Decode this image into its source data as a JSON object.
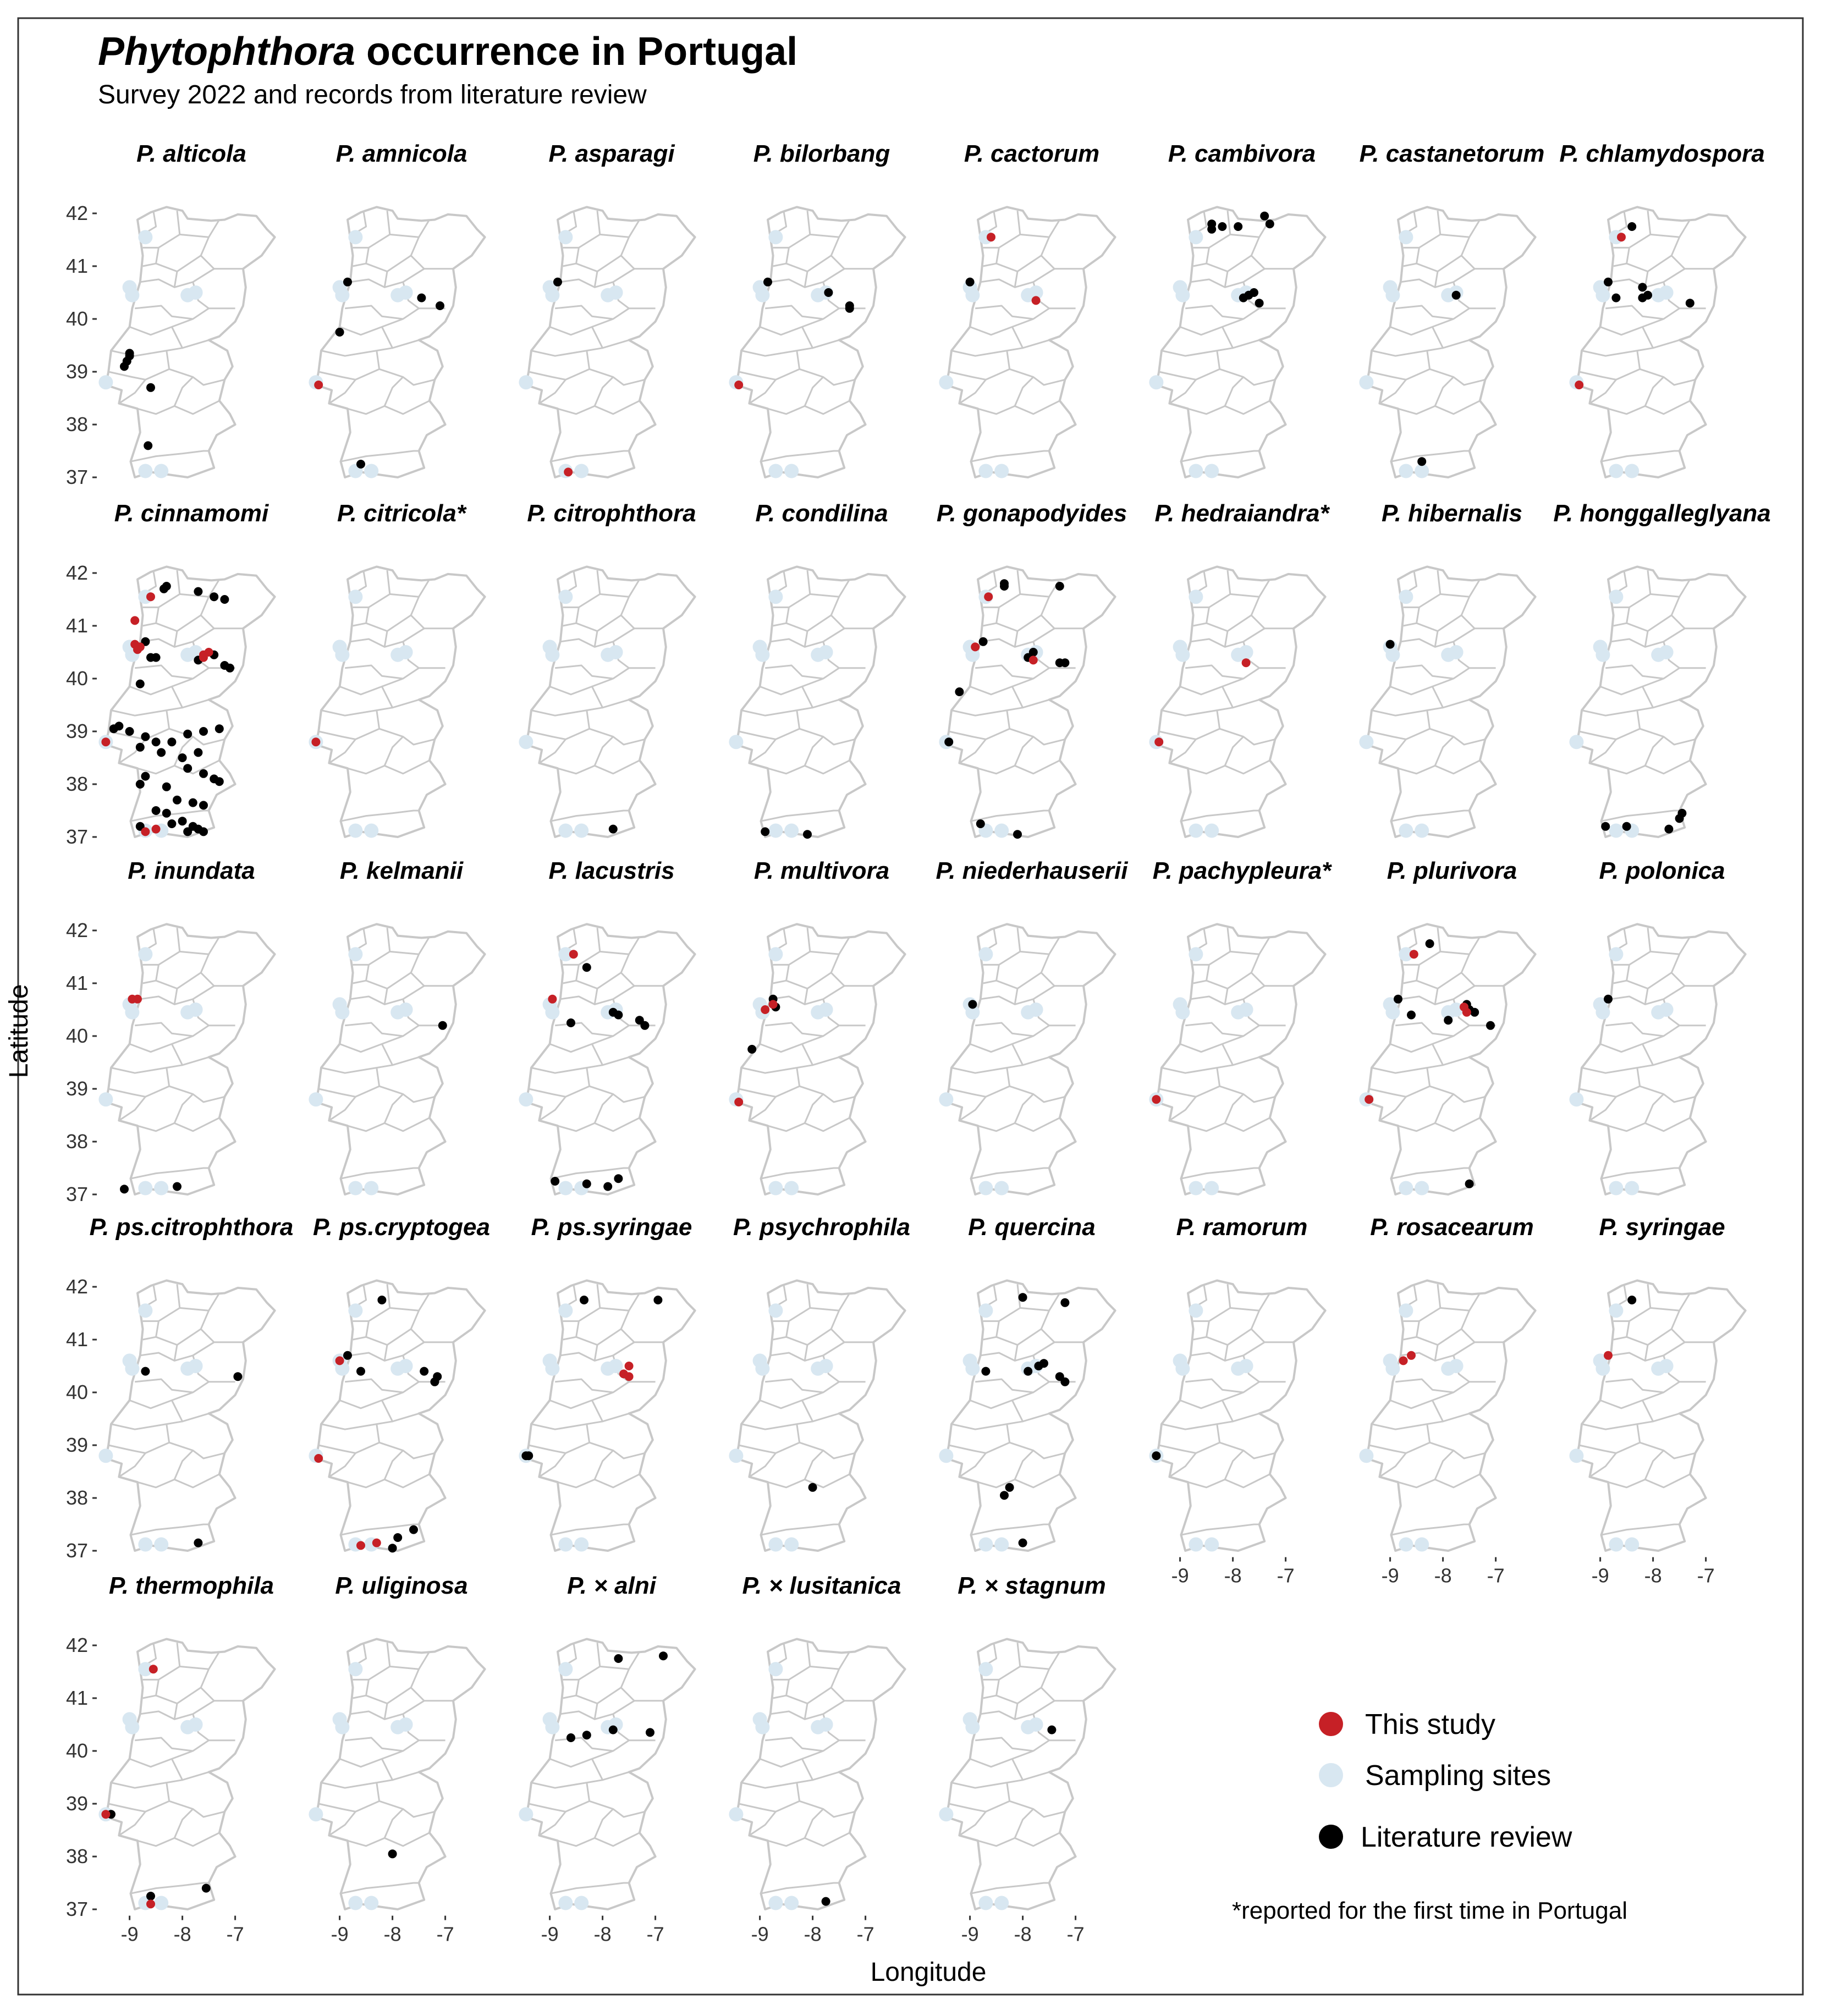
{
  "title": {
    "italic": "Phytophthora",
    "rest": " occurrence in Portugal"
  },
  "subtitle": "Survey 2022 and records from literature review",
  "colors": {
    "this_study": "#c62026",
    "sampling": "#d8e7f1",
    "literature": "#000000",
    "map": "#c8c8c8",
    "frame": "#333333"
  },
  "legend": {
    "items": [
      {
        "key": "this_study",
        "label": "This study"
      },
      {
        "key": "sampling",
        "label": "Sampling sites"
      },
      {
        "key": "literature",
        "label": "Literature review"
      }
    ]
  },
  "footnote": "*reported for the first time in Portugal",
  "chart_data": {
    "type": "scatter",
    "title": "Phytophthora occurrence in Portugal",
    "subtitle": "Survey 2022 and records from literature review",
    "xlabel": "Longitude",
    "ylabel": "Latitude",
    "xlim": [
      -9.6,
      -6.2
    ],
    "ylim": [
      36.9,
      42.25
    ],
    "x_ticks": [
      -9,
      -8,
      -7
    ],
    "x_tick_labels": [
      "-9",
      "-8",
      "-7"
    ],
    "y_ticks": [
      42,
      41,
      40,
      39,
      38,
      37
    ],
    "y_tick_labels": [
      "42",
      "41",
      "40",
      "39",
      "38",
      "37"
    ],
    "sampling_sites": [
      [
        -8.7,
        41.55
      ],
      [
        -9.0,
        40.6
      ],
      [
        -8.95,
        40.45
      ],
      [
        -7.9,
        40.45
      ],
      [
        -7.75,
        40.5
      ],
      [
        -9.45,
        38.8
      ],
      [
        -8.7,
        37.12
      ],
      [
        -8.4,
        37.12
      ]
    ],
    "panels": [
      {
        "name": "P. alticola",
        "study": [],
        "literature": [
          [
            -9.1,
            39.1
          ],
          [
            -9.05,
            39.2
          ],
          [
            -9.0,
            39.3
          ],
          [
            -9.0,
            39.35
          ],
          [
            -8.6,
            38.7
          ],
          [
            -8.65,
            37.6
          ]
        ]
      },
      {
        "name": "P. amnicola",
        "study": [
          [
            -9.4,
            38.75
          ]
        ],
        "literature": [
          [
            -8.85,
            40.7
          ],
          [
            -9.0,
            39.75
          ],
          [
            -7.45,
            40.4
          ],
          [
            -7.1,
            40.25
          ],
          [
            -8.6,
            37.25
          ]
        ]
      },
      {
        "name": "P. asparagi",
        "study": [
          [
            -8.65,
            37.1
          ]
        ],
        "literature": [
          [
            -8.85,
            40.7
          ]
        ]
      },
      {
        "name": "P. bilorbang",
        "study": [
          [
            -9.4,
            38.75
          ]
        ],
        "literature": [
          [
            -8.85,
            40.7
          ],
          [
            -7.7,
            40.5
          ],
          [
            -7.3,
            40.25
          ],
          [
            -7.3,
            40.2
          ]
        ]
      },
      {
        "name": "P. cactorum",
        "study": [
          [
            -8.6,
            41.55
          ],
          [
            -7.75,
            40.35
          ]
        ],
        "literature": [
          [
            -9.0,
            40.7
          ]
        ]
      },
      {
        "name": "P. cambivora",
        "study": [],
        "literature": [
          [
            -8.4,
            41.8
          ],
          [
            -8.4,
            41.7
          ],
          [
            -8.2,
            41.75
          ],
          [
            -7.9,
            41.75
          ],
          [
            -7.4,
            41.95
          ],
          [
            -7.3,
            41.8
          ],
          [
            -7.7,
            40.45
          ],
          [
            -7.6,
            40.5
          ],
          [
            -7.8,
            40.4
          ],
          [
            -7.5,
            40.3
          ]
        ]
      },
      {
        "name": "P. castanetorum",
        "study": [],
        "literature": [
          [
            -7.75,
            40.45
          ],
          [
            -8.4,
            37.3
          ]
        ]
      },
      {
        "name": "P. chlamydospora",
        "study": [
          [
            -8.6,
            41.55
          ],
          [
            -9.4,
            38.75
          ]
        ],
        "literature": [
          [
            -8.4,
            41.75
          ],
          [
            -8.85,
            40.7
          ],
          [
            -8.7,
            40.4
          ],
          [
            -8.2,
            40.6
          ],
          [
            -8.2,
            40.4
          ],
          [
            -8.1,
            40.45
          ],
          [
            -7.3,
            40.3
          ]
        ]
      },
      {
        "name": "P. cinnamomi",
        "study": [
          [
            -8.6,
            41.55
          ],
          [
            -8.9,
            41.1
          ],
          [
            -8.9,
            40.65
          ],
          [
            -8.8,
            40.6
          ],
          [
            -8.85,
            40.55
          ],
          [
            -7.6,
            40.45
          ],
          [
            -7.6,
            40.4
          ],
          [
            -7.5,
            40.5
          ],
          [
            -9.45,
            38.8
          ],
          [
            -8.7,
            37.1
          ],
          [
            -8.5,
            37.15
          ]
        ],
        "literature": [
          [
            -8.3,
            41.75
          ],
          [
            -8.35,
            41.7
          ],
          [
            -7.7,
            41.65
          ],
          [
            -7.4,
            41.55
          ],
          [
            -7.2,
            41.5
          ],
          [
            -8.7,
            40.7
          ],
          [
            -8.6,
            40.4
          ],
          [
            -8.5,
            40.4
          ],
          [
            -7.7,
            40.35
          ],
          [
            -7.4,
            40.45
          ],
          [
            -7.2,
            40.25
          ],
          [
            -7.1,
            40.2
          ],
          [
            -8.8,
            39.9
          ],
          [
            -9.2,
            39.1
          ],
          [
            -9.0,
            39.0
          ],
          [
            -8.7,
            38.9
          ],
          [
            -8.5,
            38.8
          ],
          [
            -8.2,
            38.8
          ],
          [
            -7.9,
            38.95
          ],
          [
            -7.6,
            39.0
          ],
          [
            -7.3,
            39.05
          ],
          [
            -9.3,
            39.05
          ],
          [
            -8.8,
            38.7
          ],
          [
            -8.4,
            38.6
          ],
          [
            -8.0,
            38.5
          ],
          [
            -7.7,
            38.6
          ],
          [
            -8.8,
            38.0
          ],
          [
            -8.7,
            38.15
          ],
          [
            -8.3,
            37.95
          ],
          [
            -7.9,
            38.3
          ],
          [
            -7.6,
            38.2
          ],
          [
            -7.4,
            38.1
          ],
          [
            -7.3,
            38.05
          ],
          [
            -8.1,
            37.7
          ],
          [
            -7.8,
            37.65
          ],
          [
            -7.6,
            37.6
          ],
          [
            -8.5,
            37.5
          ],
          [
            -8.3,
            37.45
          ],
          [
            -8.0,
            37.3
          ],
          [
            -7.8,
            37.2
          ],
          [
            -7.7,
            37.15
          ],
          [
            -8.8,
            37.2
          ],
          [
            -7.9,
            37.1
          ],
          [
            -7.6,
            37.1
          ],
          [
            -8.2,
            37.25
          ]
        ]
      },
      {
        "name": "P. citricola*",
        "study": [
          [
            -9.45,
            38.8
          ]
        ],
        "literature": []
      },
      {
        "name": "P. citrophthora",
        "study": [],
        "literature": [
          [
            -7.8,
            37.15
          ]
        ]
      },
      {
        "name": "P. condilina",
        "study": [],
        "literature": [
          [
            -8.9,
            37.1
          ],
          [
            -8.1,
            37.05
          ]
        ]
      },
      {
        "name": "P. gonapodyides",
        "study": [
          [
            -8.65,
            41.55
          ],
          [
            -8.9,
            40.6
          ],
          [
            -7.8,
            40.35
          ]
        ],
        "literature": [
          [
            -8.35,
            41.75
          ],
          [
            -8.35,
            41.8
          ],
          [
            -7.3,
            41.75
          ],
          [
            -8.75,
            40.7
          ],
          [
            -7.8,
            40.5
          ],
          [
            -7.9,
            40.4
          ],
          [
            -7.3,
            40.3
          ],
          [
            -7.2,
            40.3
          ],
          [
            -9.2,
            39.75
          ],
          [
            -9.4,
            38.8
          ],
          [
            -8.8,
            37.25
          ],
          [
            -8.1,
            37.05
          ]
        ]
      },
      {
        "name": "P. hedraiandra*",
        "study": [
          [
            -9.4,
            38.8
          ],
          [
            -7.75,
            40.3
          ]
        ],
        "literature": []
      },
      {
        "name": "P. hibernalis",
        "study": [],
        "literature": [
          [
            -9.0,
            40.65
          ]
        ]
      },
      {
        "name": "P. honggalleglyana",
        "study": [],
        "literature": [
          [
            -8.9,
            37.2
          ],
          [
            -8.5,
            37.2
          ],
          [
            -7.7,
            37.15
          ],
          [
            -7.5,
            37.35
          ],
          [
            -7.45,
            37.45
          ]
        ]
      },
      {
        "name": "P. inundata",
        "study": [
          [
            -8.95,
            40.7
          ],
          [
            -8.85,
            40.7
          ]
        ],
        "literature": [
          [
            -9.1,
            37.1
          ],
          [
            -8.1,
            37.15
          ]
        ]
      },
      {
        "name": "P. kelmanii",
        "study": [],
        "literature": [
          [
            -7.05,
            40.2
          ]
        ]
      },
      {
        "name": "P. lacustris",
        "study": [
          [
            -8.55,
            41.55
          ],
          [
            -8.95,
            40.7
          ]
        ],
        "literature": [
          [
            -8.3,
            41.3
          ],
          [
            -8.6,
            40.25
          ],
          [
            -7.8,
            40.45
          ],
          [
            -7.7,
            40.4
          ],
          [
            -7.3,
            40.3
          ],
          [
            -7.2,
            40.2
          ],
          [
            -8.9,
            37.25
          ],
          [
            -8.3,
            37.2
          ],
          [
            -7.9,
            37.15
          ],
          [
            -7.7,
            37.3
          ]
        ]
      },
      {
        "name": "P. multivora",
        "study": [
          [
            -8.75,
            40.6
          ],
          [
            -8.9,
            40.5
          ],
          [
            -9.4,
            38.75
          ]
        ],
        "literature": [
          [
            -8.75,
            40.7
          ],
          [
            -8.7,
            40.55
          ],
          [
            -9.15,
            39.75
          ]
        ]
      },
      {
        "name": "P. niederhauserii",
        "study": [],
        "literature": [
          [
            -8.95,
            40.6
          ]
        ]
      },
      {
        "name": "P. pachypleura*",
        "study": [
          [
            -9.45,
            38.8
          ]
        ],
        "literature": []
      },
      {
        "name": "P. plurivora",
        "study": [
          [
            -8.55,
            41.55
          ],
          [
            -7.6,
            40.55
          ],
          [
            -7.55,
            40.45
          ],
          [
            -9.4,
            38.8
          ]
        ],
        "literature": [
          [
            -8.25,
            41.75
          ],
          [
            -8.85,
            40.7
          ],
          [
            -8.6,
            40.4
          ],
          [
            -7.9,
            40.3
          ],
          [
            -7.55,
            40.6
          ],
          [
            -7.5,
            40.5
          ],
          [
            -7.4,
            40.45
          ],
          [
            -7.1,
            40.2
          ],
          [
            -7.5,
            37.2
          ]
        ]
      },
      {
        "name": "P. polonica",
        "study": [],
        "literature": [
          [
            -8.85,
            40.7
          ]
        ]
      },
      {
        "name": "P. ps.citrophthora",
        "study": [],
        "literature": [
          [
            -8.7,
            40.4
          ],
          [
            -6.95,
            40.3
          ],
          [
            -7.7,
            37.15
          ]
        ]
      },
      {
        "name": "P. ps.cryptogea",
        "study": [
          [
            -9.0,
            40.6
          ],
          [
            -9.4,
            38.75
          ],
          [
            -8.6,
            37.1
          ],
          [
            -8.3,
            37.15
          ]
        ],
        "literature": [
          [
            -8.2,
            41.75
          ],
          [
            -8.85,
            40.7
          ],
          [
            -8.6,
            40.4
          ],
          [
            -7.4,
            40.4
          ],
          [
            -7.15,
            40.3
          ],
          [
            -7.2,
            40.2
          ],
          [
            -7.9,
            37.25
          ],
          [
            -8.0,
            37.05
          ],
          [
            -7.6,
            37.4
          ]
        ]
      },
      {
        "name": "P. ps.syringae",
        "study": [
          [
            -7.5,
            40.5
          ],
          [
            -7.6,
            40.35
          ],
          [
            -7.5,
            40.3
          ]
        ],
        "literature": [
          [
            -8.35,
            41.75
          ],
          [
            -6.95,
            41.75
          ],
          [
            -9.45,
            38.8
          ],
          [
            -9.4,
            38.8
          ]
        ]
      },
      {
        "name": "P. psychrophila",
        "study": [],
        "literature": [
          [
            -8.0,
            38.2
          ]
        ]
      },
      {
        "name": "P. quercina",
        "study": [],
        "literature": [
          [
            -8.0,
            41.8
          ],
          [
            -7.2,
            41.7
          ],
          [
            -8.7,
            40.4
          ],
          [
            -7.9,
            40.4
          ],
          [
            -7.7,
            40.5
          ],
          [
            -7.6,
            40.55
          ],
          [
            -7.3,
            40.3
          ],
          [
            -7.2,
            40.2
          ],
          [
            -8.25,
            38.2
          ],
          [
            -8.35,
            38.05
          ],
          [
            -8.0,
            37.15
          ]
        ]
      },
      {
        "name": "P. ramorum",
        "study": [],
        "literature": [
          [
            -9.45,
            38.8
          ]
        ]
      },
      {
        "name": "P. rosacearum",
        "study": [
          [
            -8.6,
            40.7
          ],
          [
            -8.75,
            40.6
          ]
        ],
        "literature": []
      },
      {
        "name": "P. syringae",
        "study": [
          [
            -8.85,
            40.7
          ]
        ],
        "literature": [
          [
            -8.4,
            41.75
          ]
        ]
      },
      {
        "name": "P. thermophila",
        "study": [
          [
            -8.55,
            41.55
          ],
          [
            -9.45,
            38.8
          ],
          [
            -8.6,
            37.1
          ]
        ],
        "literature": [
          [
            -9.35,
            38.8
          ],
          [
            -8.6,
            37.25
          ],
          [
            -7.55,
            37.4
          ]
        ]
      },
      {
        "name": "P. uliginosa",
        "study": [],
        "literature": [
          [
            -8.0,
            38.05
          ]
        ]
      },
      {
        "name": "P. × alni",
        "study": [],
        "literature": [
          [
            -7.7,
            41.75
          ],
          [
            -6.85,
            41.8
          ],
          [
            -8.6,
            40.25
          ],
          [
            -8.3,
            40.3
          ],
          [
            -7.8,
            40.4
          ],
          [
            -7.1,
            40.35
          ]
        ]
      },
      {
        "name": "P. × lusitanica",
        "study": [],
        "literature": [
          [
            -7.75,
            37.15
          ]
        ]
      },
      {
        "name": "P. × stagnum",
        "study": [],
        "literature": [
          [
            -7.45,
            40.4
          ]
        ]
      }
    ]
  }
}
